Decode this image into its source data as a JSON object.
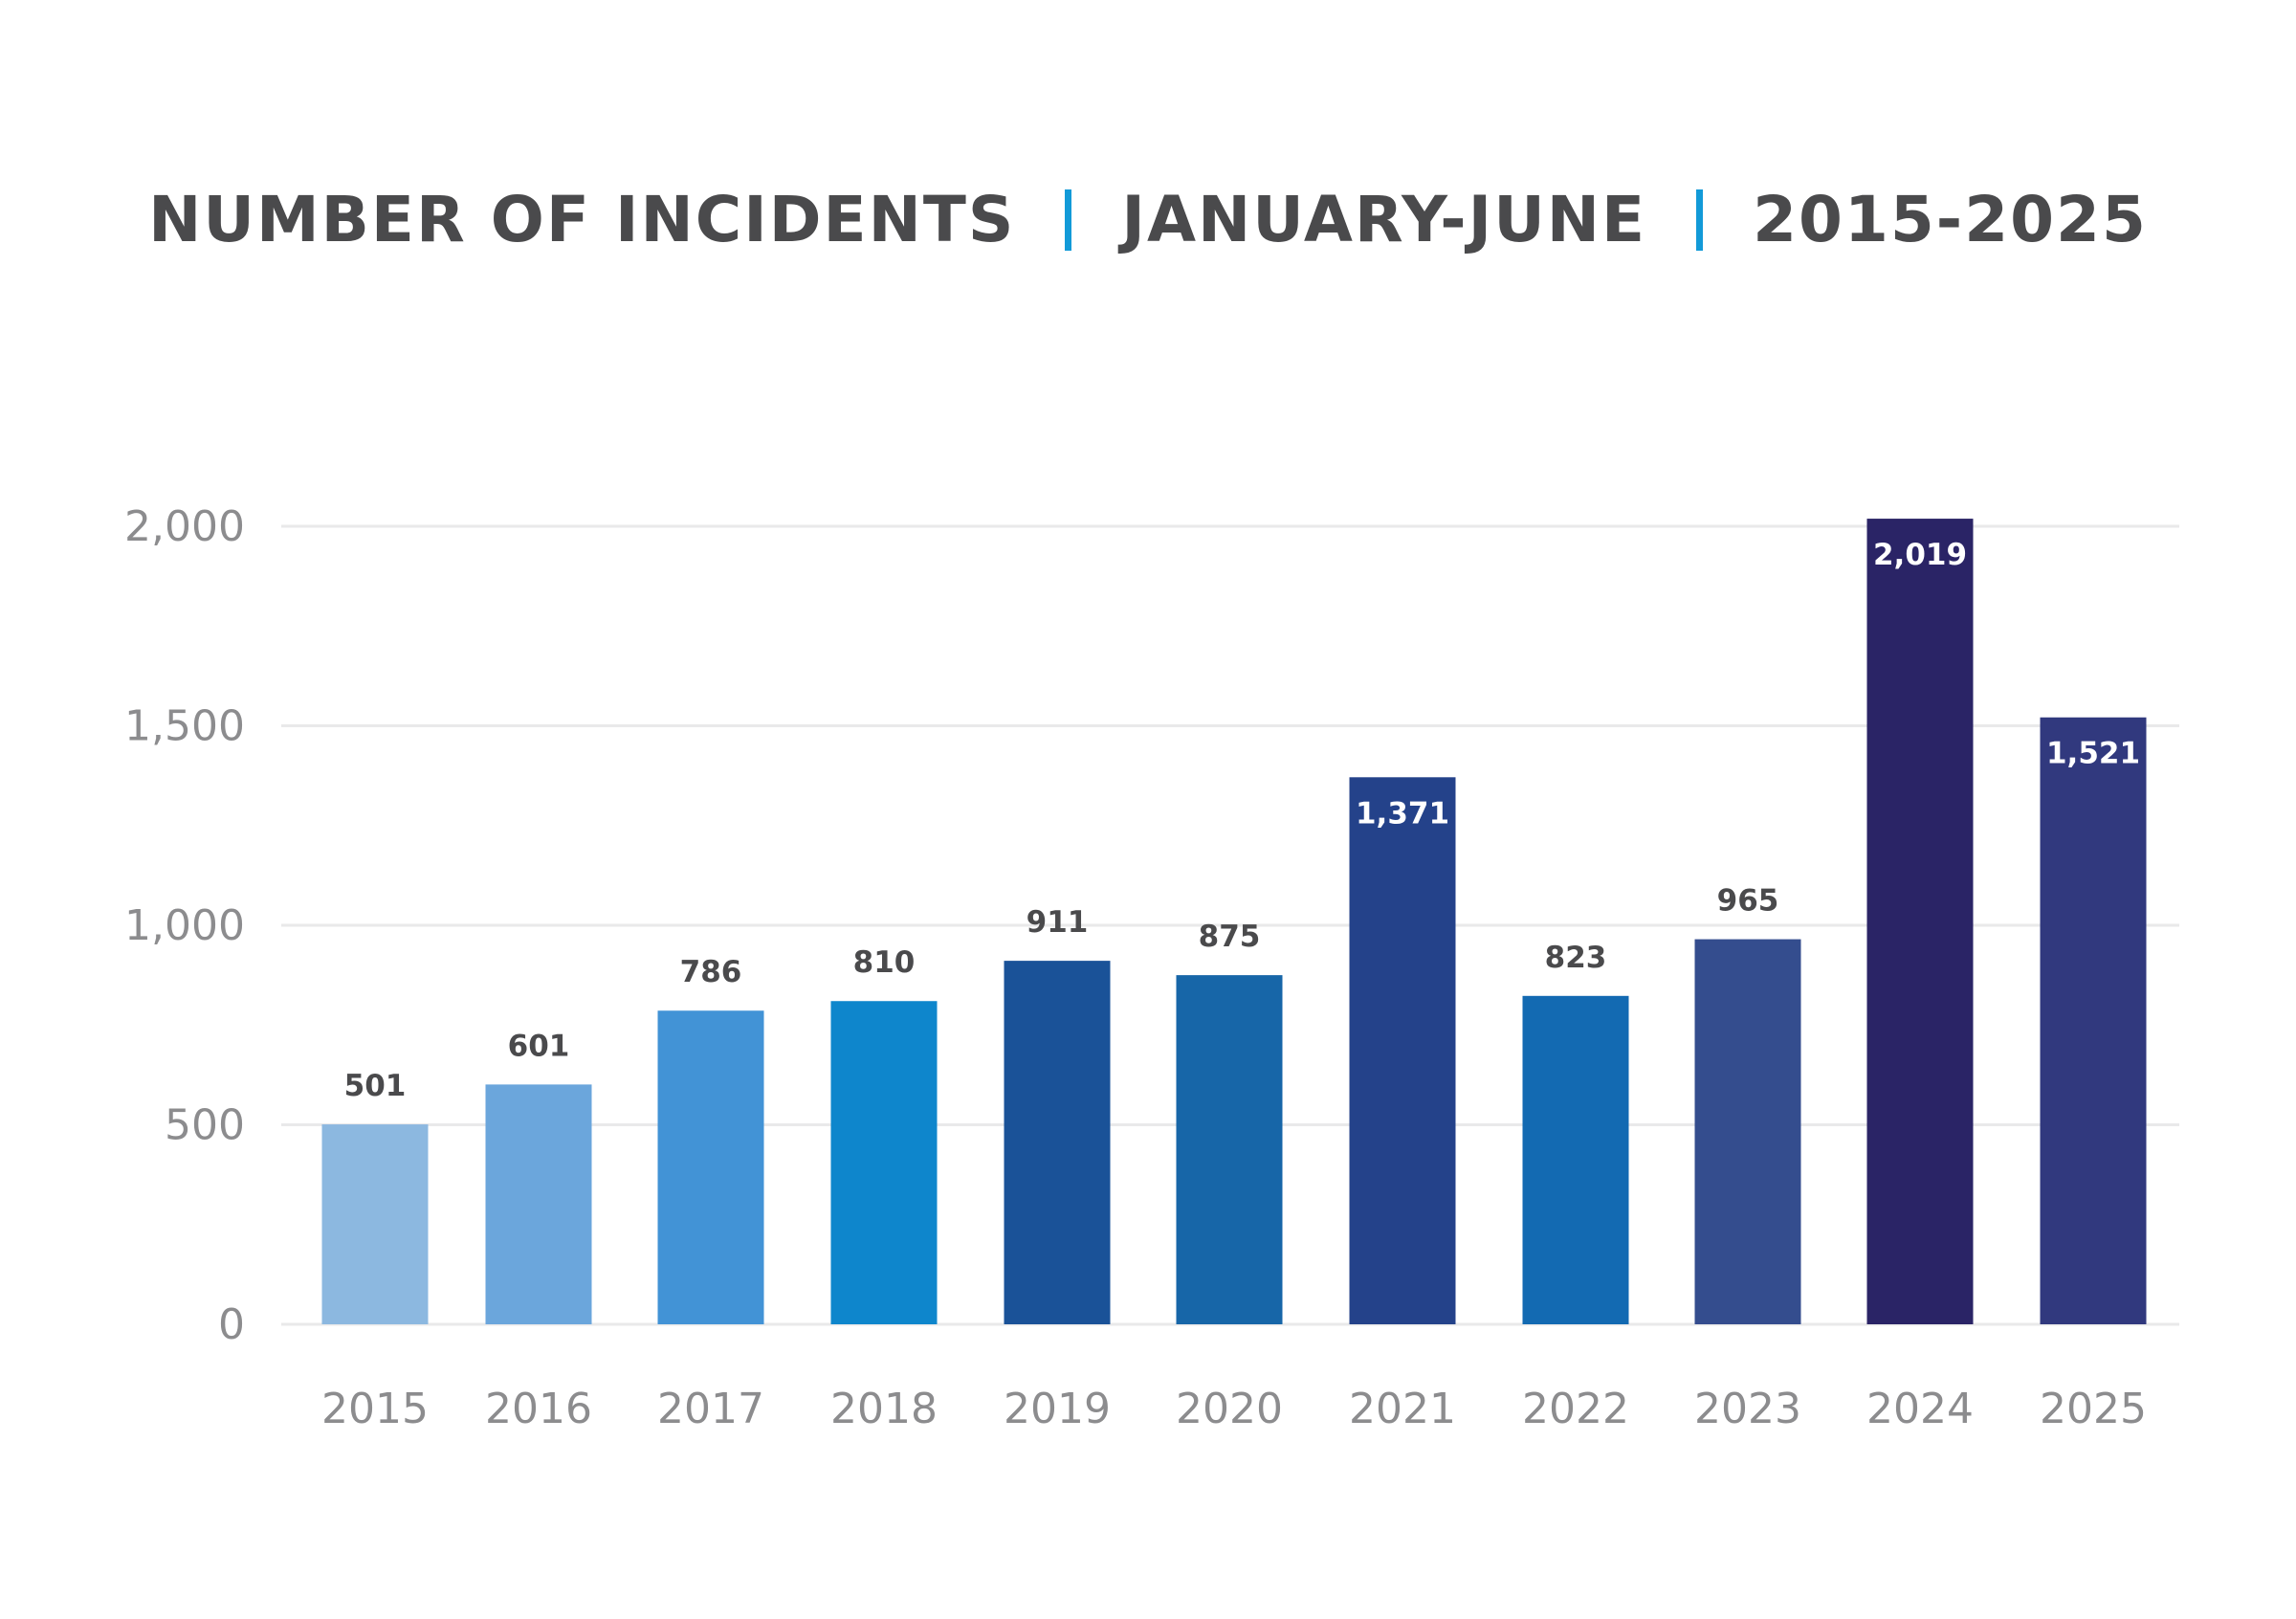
{
  "chart_data": {
    "type": "bar",
    "title_parts": [
      "NUMBER OF INCIDENTS",
      "JANUARY-JUNE",
      "2015-2025"
    ],
    "xlabel": "",
    "ylabel": "",
    "categories": [
      "2015",
      "2016",
      "2017",
      "2018",
      "2019",
      "2020",
      "2021",
      "2022",
      "2023",
      "2024",
      "2025"
    ],
    "values": [
      501,
      601,
      786,
      810,
      911,
      875,
      1371,
      823,
      965,
      2019,
      1521
    ],
    "value_labels": [
      "501",
      "601",
      "786",
      "810",
      "911",
      "875",
      "1,371",
      "823",
      "965",
      "2,019",
      "1,521"
    ],
    "bar_colors": [
      "#8cb8e0",
      "#6ba6dc",
      "#4293d6",
      "#0e86cc",
      "#1a5298",
      "#1766a8",
      "#24428a",
      "#136ab2",
      "#344d8e",
      "#2a2466",
      "#31397e"
    ],
    "ylim": [
      0,
      2000
    ],
    "yticks": [
      0,
      500,
      1000,
      1500,
      2000
    ],
    "ytick_labels": [
      "0",
      "500",
      "1,000",
      "1,500",
      "2,000"
    ],
    "grid": true,
    "legend": false,
    "colors": {
      "title": "#4a4a4c",
      "separator": "#129ad8",
      "axis_text": "#8c8c8e",
      "value_label_dark": "#4a4a4c",
      "value_label_light": "#ffffff",
      "grid": "#e9e9ea"
    }
  }
}
